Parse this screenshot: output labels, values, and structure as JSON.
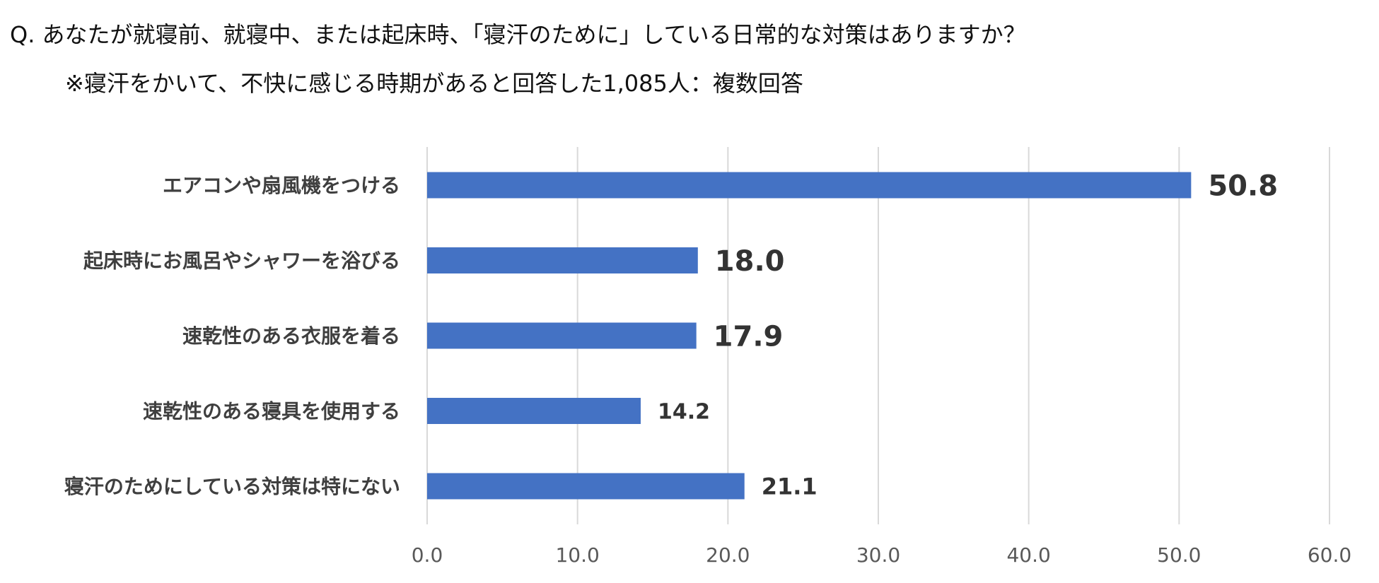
{
  "header": {
    "question": "Q.  あなたが就寝前、就寝中、または起床時、「寝汗のために」している日常的な対策はありますか？",
    "note": "※寝汗をかいて、不快に感じる時期があると回答した1,085人：複数回答"
  },
  "chart_data": {
    "type": "bar",
    "orientation": "horizontal",
    "categories": [
      "エアコンや扇風機をつける",
      "起床時にお風呂やシャワーを浴びる",
      "速乾性のある衣服を着る",
      "速乾性のある寝具を使用する",
      "寝汗のためにしている対策は特にない"
    ],
    "values": [
      50.8,
      18.0,
      17.9,
      14.2,
      21.1
    ],
    "value_labels": [
      "50.8",
      "18.0",
      "17.9",
      "14.2",
      "21.1"
    ],
    "xlim": [
      0,
      60
    ],
    "xticks": [
      0,
      10,
      20,
      30,
      40,
      50,
      60
    ],
    "xtick_labels": [
      "0.0",
      "10.0",
      "20.0",
      "30.0",
      "40.0",
      "50.0",
      "60.0"
    ],
    "grid": "vertical",
    "legend": "none",
    "colors": {
      "bar": "#4472c4",
      "grid": "#d9d9d9"
    }
  }
}
